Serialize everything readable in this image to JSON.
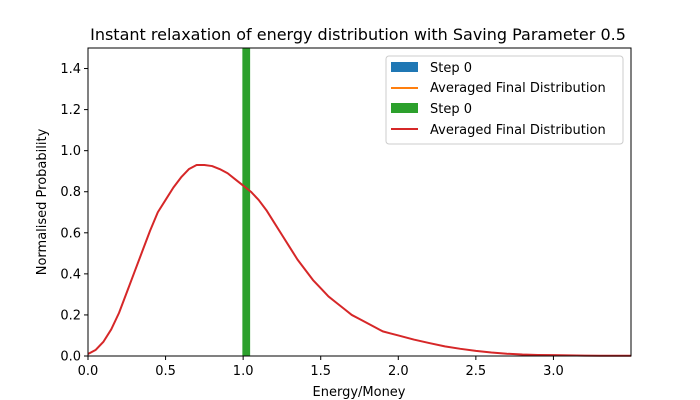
{
  "chart_data": {
    "type": "line",
    "title": "Instant relaxation of energy distribution with Saving Parameter 0.5",
    "xlabel": "Energy/Money",
    "ylabel": "Normalised Probability",
    "xlim": [
      0,
      3.5
    ],
    "ylim": [
      0,
      1.5
    ],
    "xticks": [
      "0.0",
      "0.5",
      "1.0",
      "1.5",
      "2.0",
      "2.5",
      "3.0"
    ],
    "yticks": [
      "0.0",
      "0.2",
      "0.4",
      "0.6",
      "0.8",
      "1.0",
      "1.2",
      "1.4"
    ],
    "grid": false,
    "legend_position": "top-right",
    "colors": {
      "blue": "#1f77b4",
      "orange": "#ff7f0e",
      "green": "#2ca02c",
      "red": "#d62728"
    },
    "series": [
      {
        "name": "Step 0",
        "kind": "bar",
        "color": "#1f77b4",
        "x_range": [
          0.995,
          1.045
        ],
        "value": 0
      },
      {
        "name": "Averaged Final Distribution",
        "kind": "line",
        "color": "#ff7f0e",
        "hidden_under_red": true
      },
      {
        "name": "Step 0",
        "kind": "bar",
        "color": "#2ca02c",
        "x_range": [
          0.995,
          1.045
        ],
        "value": 1.5
      },
      {
        "name": "Averaged Final Distribution",
        "kind": "line",
        "color": "#d62728",
        "x": [
          0.0,
          0.05,
          0.1,
          0.15,
          0.2,
          0.25,
          0.3,
          0.35,
          0.4,
          0.45,
          0.5,
          0.55,
          0.6,
          0.65,
          0.7,
          0.75,
          0.8,
          0.85,
          0.9,
          0.95,
          1.0,
          1.05,
          1.1,
          1.15,
          1.2,
          1.25,
          1.3,
          1.35,
          1.4,
          1.45,
          1.5,
          1.55,
          1.6,
          1.65,
          1.7,
          1.75,
          1.8,
          1.85,
          1.9,
          1.95,
          2.0,
          2.1,
          2.2,
          2.3,
          2.4,
          2.5,
          2.6,
          2.7,
          2.8,
          2.9,
          3.0,
          3.1,
          3.2,
          3.3,
          3.4,
          3.5
        ],
        "y": [
          0.01,
          0.03,
          0.07,
          0.13,
          0.21,
          0.31,
          0.41,
          0.51,
          0.61,
          0.7,
          0.76,
          0.82,
          0.87,
          0.91,
          0.93,
          0.93,
          0.925,
          0.91,
          0.89,
          0.86,
          0.83,
          0.8,
          0.76,
          0.71,
          0.65,
          0.59,
          0.53,
          0.47,
          0.42,
          0.37,
          0.33,
          0.29,
          0.26,
          0.23,
          0.2,
          0.18,
          0.16,
          0.14,
          0.12,
          0.11,
          0.1,
          0.08,
          0.063,
          0.047,
          0.035,
          0.025,
          0.017,
          0.011,
          0.007,
          0.005,
          0.004,
          0.003,
          0.002,
          0.0015,
          0.001,
          0.001
        ]
      }
    ]
  }
}
